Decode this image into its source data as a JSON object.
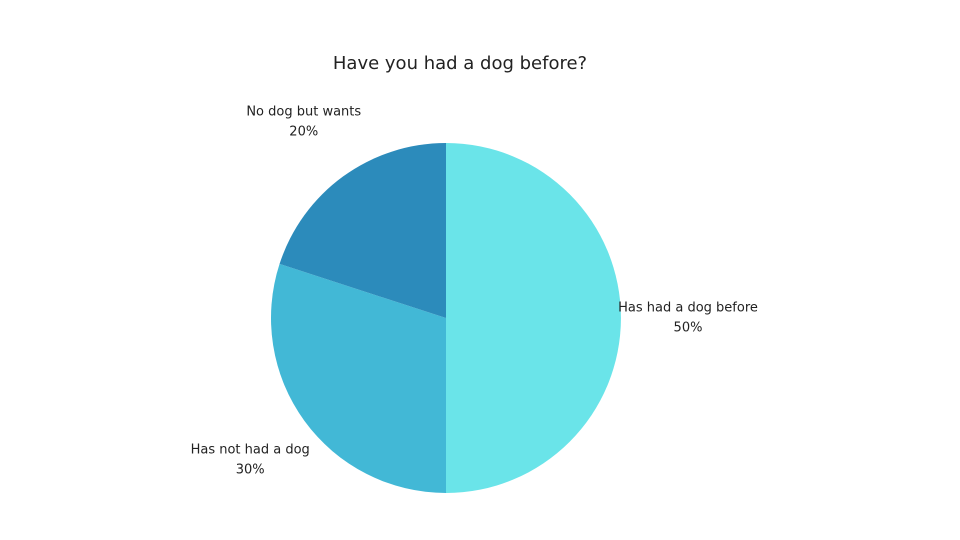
{
  "chart_data": {
    "type": "pie",
    "title": "Have you had a dog before?",
    "categories": [
      "Has had a dog before",
      "Has not had a dog",
      "No dog but wants"
    ],
    "values": [
      50,
      30,
      20
    ],
    "value_labels": [
      "50%",
      "30%",
      "20%"
    ],
    "colors": [
      "#6ae4e9",
      "#42b8d6",
      "#2c8bbb"
    ]
  }
}
